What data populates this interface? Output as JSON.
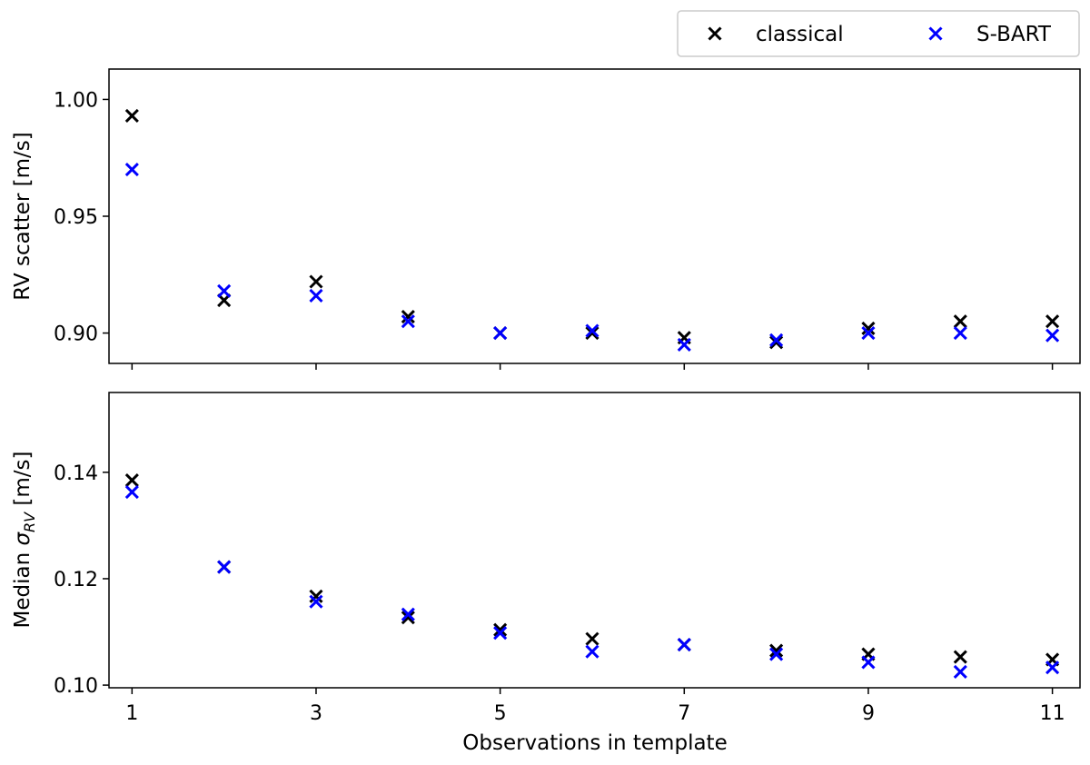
{
  "colors": {
    "classical": "#000000",
    "sbart": "#0000ff",
    "frame": "#000000",
    "legend_border": "#cccccc"
  },
  "legend": {
    "placement": "top-right, above plots",
    "entries": [
      "classical",
      "S-BART"
    ]
  },
  "xlabel": "Observations in template",
  "chart_data": [
    {
      "type": "scatter",
      "ylabel": "RV scatter [m/s]",
      "xlim": [
        0.75,
        11.3
      ],
      "ylim": [
        0.887,
        1.013
      ],
      "xticks": [
        1,
        3,
        5,
        7,
        9,
        11
      ],
      "yticks": [
        "0.90",
        "0.95",
        "1.00"
      ],
      "x": [
        1,
        2,
        3,
        4,
        5,
        6,
        7,
        8,
        9,
        10,
        11
      ],
      "series": [
        {
          "name": "classical",
          "values": [
            0.993,
            0.914,
            0.922,
            0.907,
            0.9,
            0.9,
            0.898,
            0.896,
            0.902,
            0.905,
            0.905
          ]
        },
        {
          "name": "S-BART",
          "values": [
            0.97,
            0.918,
            0.916,
            0.905,
            0.9,
            0.901,
            0.895,
            0.897,
            0.9,
            0.9,
            0.899
          ]
        }
      ]
    },
    {
      "type": "scatter",
      "ylabel_prefix": "Median ",
      "ylabel_symbol": "σ",
      "ylabel_subscript": "RV",
      "ylabel_suffix": " [m/s]",
      "xlim": [
        0.75,
        11.3
      ],
      "ylim": [
        0.0995,
        0.155
      ],
      "xticks": [
        1,
        3,
        5,
        7,
        9,
        11
      ],
      "yticks": [
        "0.10",
        "0.12",
        "0.14"
      ],
      "x": [
        1,
        2,
        3,
        4,
        5,
        6,
        7,
        8,
        9,
        10,
        11
      ],
      "series": [
        {
          "name": "classical",
          "values": [
            0.1385,
            0.1222,
            0.1167,
            0.1127,
            0.1104,
            0.1087,
            0.1076,
            0.1065,
            0.1058,
            0.1053,
            0.1048
          ]
        },
        {
          "name": "S-BART",
          "values": [
            0.1363,
            0.1222,
            0.1157,
            0.1133,
            0.1098,
            0.1063,
            0.1076,
            0.1058,
            0.1043,
            0.1025,
            0.1033
          ]
        }
      ]
    }
  ]
}
